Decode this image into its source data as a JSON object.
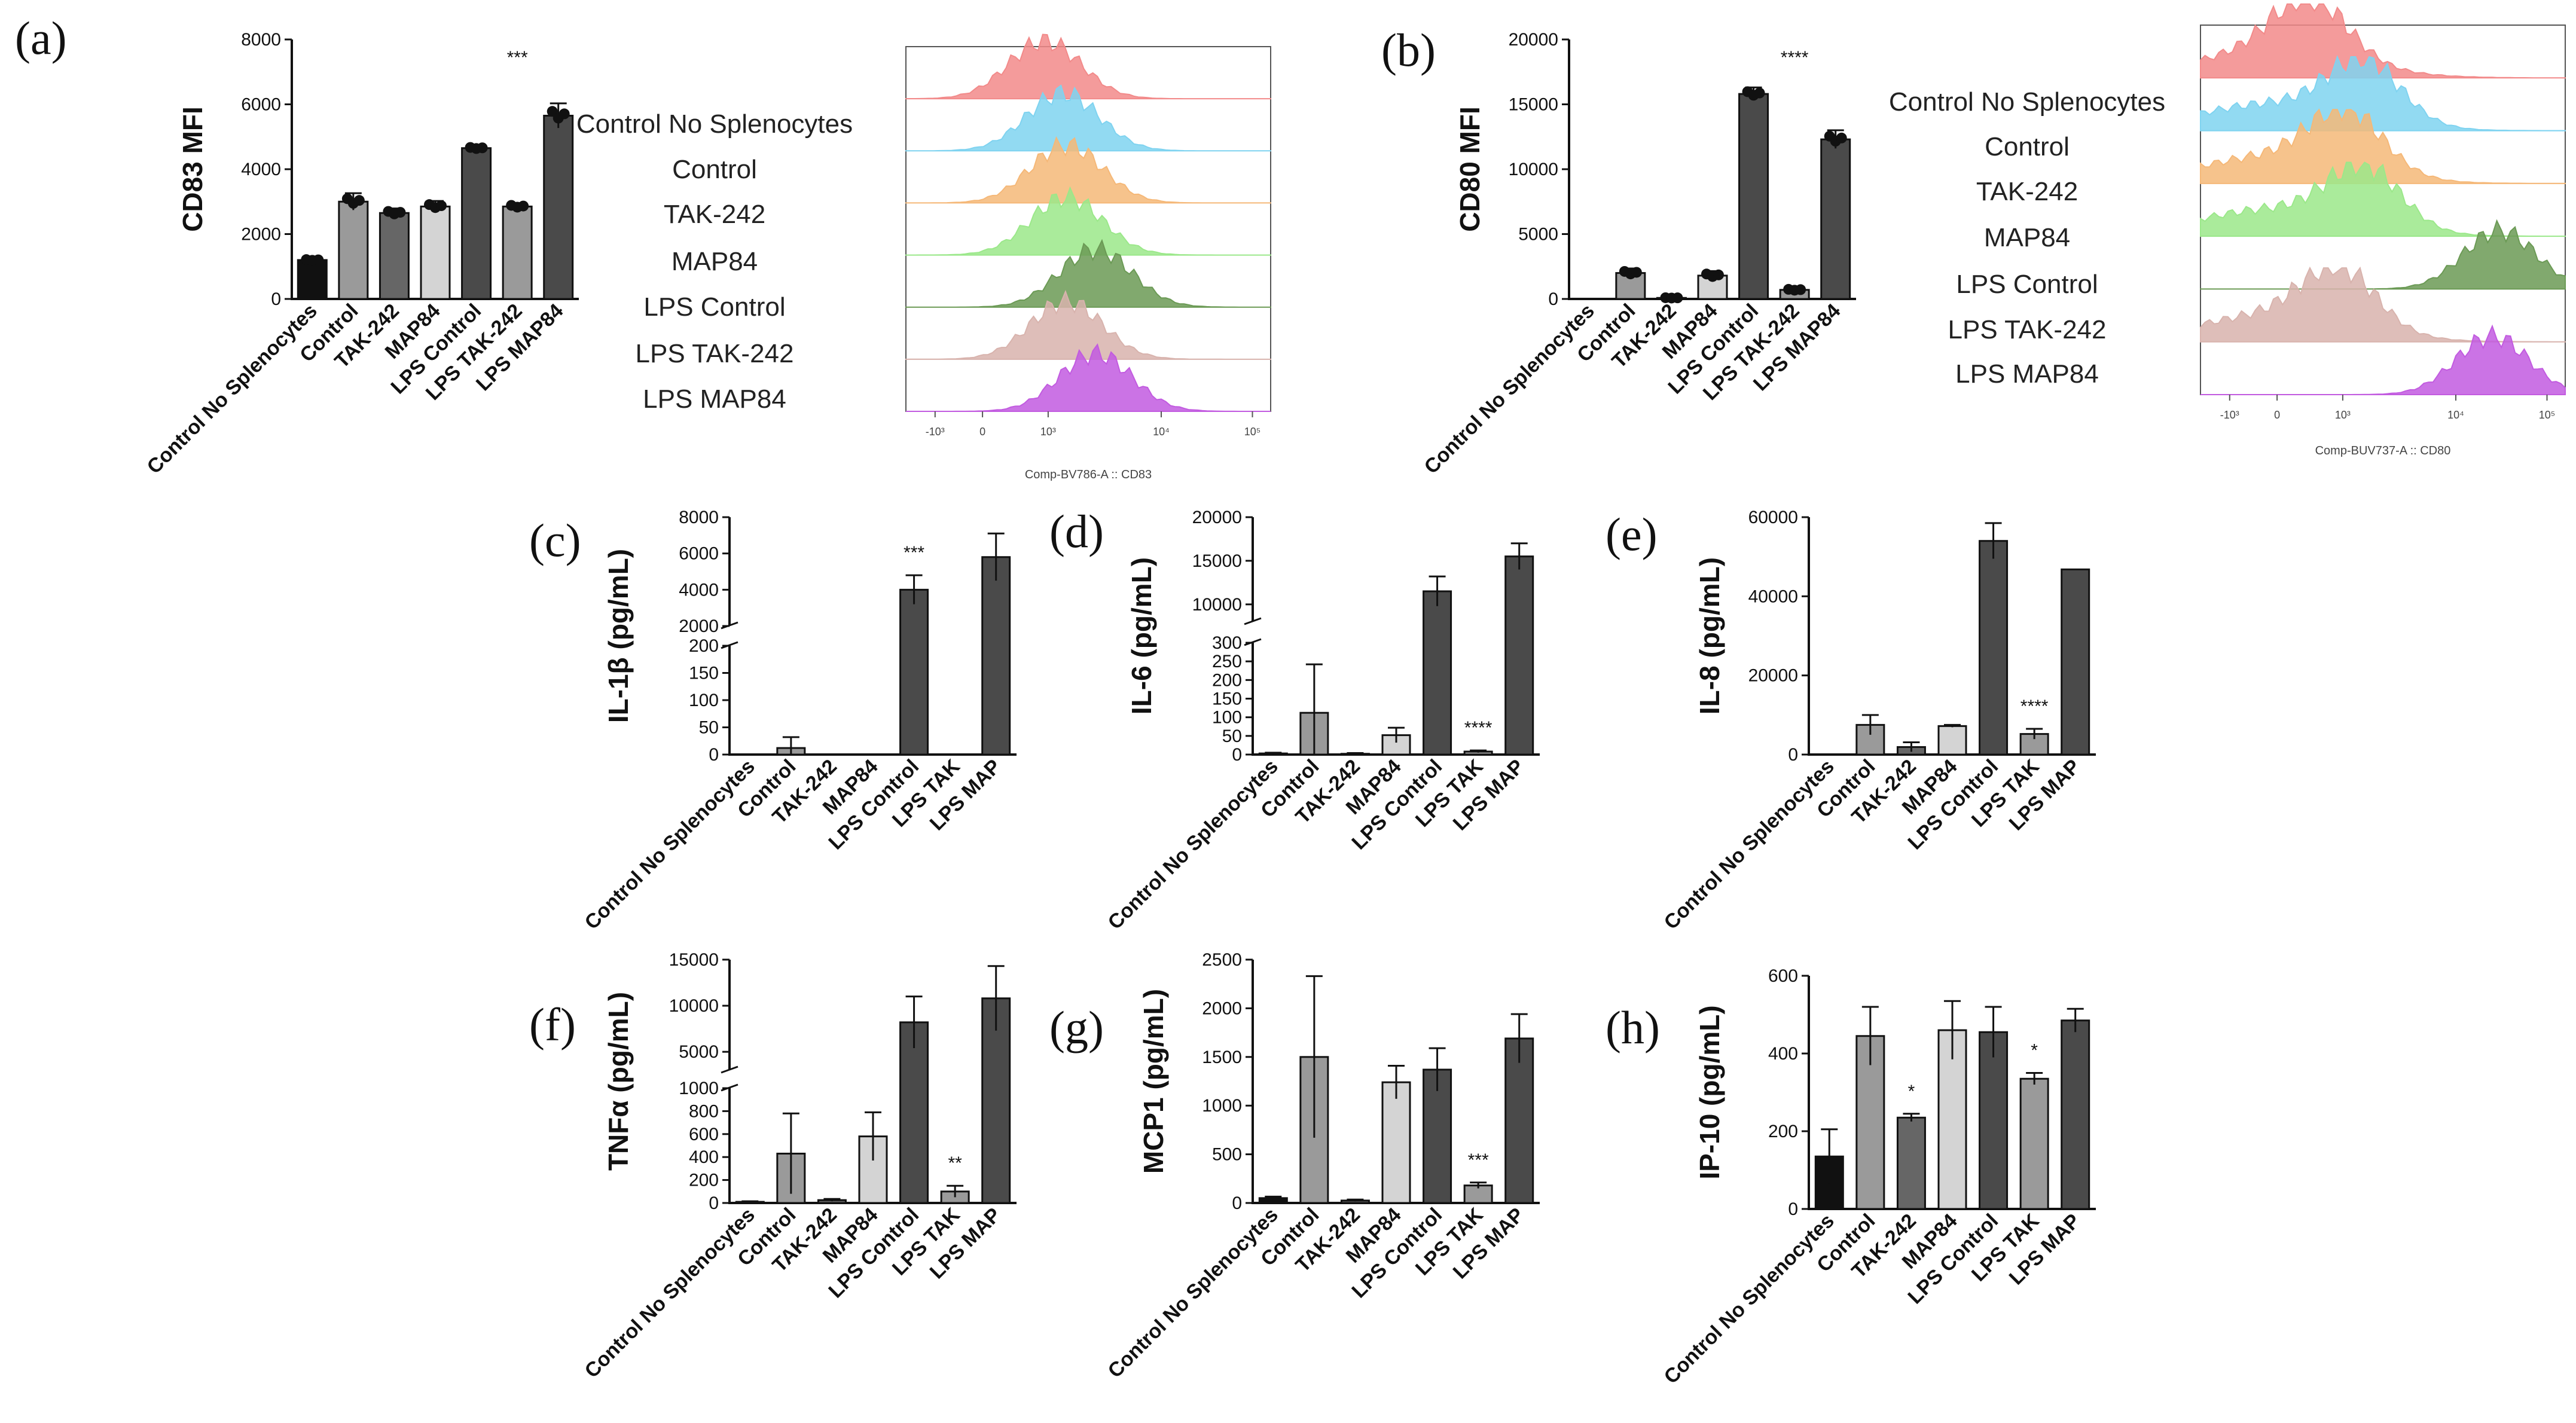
{
  "colors": {
    "black": "#111111",
    "mid_gray": "#9a9a9a",
    "dark_gray": "#666666",
    "light_gray": "#d4d4d4",
    "darker": "#4a4a4a",
    "axis": "#111111"
  },
  "chart_data": [
    {
      "panel": "(a)",
      "type": "bar",
      "ylabel": "CD83 MFI",
      "categories": [
        "Control No Splenocytes",
        "Control",
        "TAK-242",
        "MAP84",
        "LPS Control",
        "LPS TAK-242",
        "LPS MAP84"
      ],
      "values": [
        1200,
        3000,
        2650,
        2850,
        4650,
        2850,
        5650
      ],
      "errors": [
        40,
        260,
        140,
        170,
        60,
        100,
        380
      ],
      "ylim": [
        0,
        8000
      ],
      "yticks": [
        "0",
        "2000",
        "4000",
        "6000",
        "8000"
      ],
      "significance": [
        {
          "label": "***",
          "category": "LPS TAK-242"
        }
      ]
    },
    {
      "panel": "(b)",
      "type": "bar",
      "ylabel": "CD80 MFI",
      "categories": [
        "Control No Splenocytes",
        "Control",
        "TAK-242",
        "MAP84",
        "LPS Control",
        "LPS TAK-242",
        "LPS MAP84"
      ],
      "values": [
        0,
        2000,
        80,
        1800,
        15800,
        700,
        12300
      ],
      "errors": [
        0,
        350,
        40,
        350,
        500,
        120,
        700
      ],
      "ylim": [
        0,
        20000
      ],
      "yticks": [
        "0",
        "5000",
        "10000",
        "15000",
        "20000"
      ],
      "significance": [
        {
          "label": "****",
          "category": "LPS TAK-242"
        }
      ]
    },
    {
      "panel": "(c)",
      "type": "bar",
      "ylabel": "IL-1β (pg/mL)",
      "categories": [
        "Control No Splenocytes",
        "Control",
        "TAK-242",
        "MAP84",
        "LPS Control",
        "LPS TAK",
        "LPS MAP"
      ],
      "values": [
        0,
        12,
        0,
        0,
        4000,
        0,
        5800
      ],
      "errors": [
        0,
        20,
        0,
        0,
        800,
        0,
        1300
      ],
      "ylim": [
        0,
        8000
      ],
      "axis_break": {
        "lower": [
          0,
          200
        ],
        "upper": [
          2000,
          8000
        ]
      },
      "yticks_lower": [
        "0",
        "50",
        "100",
        "150",
        "200"
      ],
      "yticks_upper": [
        "2000",
        "4000",
        "6000",
        "8000"
      ],
      "significance": [
        {
          "label": "***",
          "category": "LPS Control"
        }
      ]
    },
    {
      "panel": "(d)",
      "type": "bar",
      "ylabel": "IL-6 (pg/mL)",
      "categories": [
        "Control No Splenocytes",
        "Control",
        "TAK-242",
        "MAP84",
        "LPS Control",
        "LPS TAK",
        "LPS MAP"
      ],
      "values": [
        3,
        112,
        2,
        52,
        11500,
        8,
        15500
      ],
      "errors": [
        2,
        130,
        2,
        20,
        1700,
        3,
        1500
      ],
      "ylim": [
        0,
        20000
      ],
      "axis_break": {
        "lower": [
          0,
          300
        ],
        "upper": [
          8000,
          20000
        ]
      },
      "yticks_lower": [
        "0",
        "50",
        "100",
        "150",
        "200",
        "250",
        "300"
      ],
      "yticks_upper": [
        "10000",
        "15000",
        "20000"
      ],
      "significance": [
        {
          "label": "****",
          "category": "LPS TAK"
        }
      ]
    },
    {
      "panel": "(e)",
      "type": "bar",
      "ylabel": "IL-8 (pg/mL)",
      "categories": [
        "Control No Splenocytes",
        "Control",
        "TAK-242",
        "MAP84",
        "LPS Control",
        "LPS TAK",
        "LPS MAP"
      ],
      "values": [
        0,
        7500,
        1900,
        7200,
        54000,
        5200,
        46800
      ],
      "errors": [
        0,
        2500,
        1200,
        300,
        4500,
        1300,
        0
      ],
      "ylim": [
        0,
        60000
      ],
      "yticks": [
        "0",
        "20000",
        "40000",
        "60000"
      ],
      "significance": [
        {
          "label": "****",
          "category": "LPS TAK"
        }
      ]
    },
    {
      "panel": "(f)",
      "type": "bar",
      "ylabel": "TNFα (pg/mL)",
      "categories": [
        "Control No Splenocytes",
        "Control",
        "TAK-242",
        "MAP84",
        "LPS Control",
        "LPS TAK",
        "LPS MAP"
      ],
      "values": [
        10,
        430,
        25,
        580,
        8200,
        100,
        10800
      ],
      "errors": [
        5,
        350,
        10,
        210,
        2800,
        50,
        3500
      ],
      "ylim": [
        0,
        15000
      ],
      "axis_break": {
        "lower": [
          0,
          1000
        ],
        "upper": [
          3000,
          15000
        ]
      },
      "yticks_lower": [
        "0",
        "200",
        "400",
        "600",
        "800",
        "1000"
      ],
      "yticks_upper": [
        "5000",
        "10000",
        "15000"
      ],
      "significance": [
        {
          "label": "**",
          "category": "LPS TAK"
        }
      ]
    },
    {
      "panel": "(g)",
      "type": "bar",
      "ylabel": "MCP1 (pg/mL)",
      "categories": [
        "Control No Splenocytes",
        "Control",
        "TAK-242",
        "MAP84",
        "LPS Control",
        "LPS TAK",
        "LPS MAP"
      ],
      "values": [
        50,
        1500,
        25,
        1240,
        1370,
        180,
        1690
      ],
      "errors": [
        15,
        830,
        10,
        170,
        220,
        30,
        250
      ],
      "ylim": [
        0,
        2500
      ],
      "yticks": [
        "0",
        "500",
        "1000",
        "1500",
        "2000",
        "2500"
      ],
      "significance": [
        {
          "label": "***",
          "category": "LPS TAK"
        }
      ]
    },
    {
      "panel": "(h)",
      "type": "bar",
      "ylabel": "IP-10 (pg/mL)",
      "categories": [
        "Control No Splenocytes",
        "Control",
        "TAK-242",
        "MAP84",
        "LPS Control",
        "LPS TAK",
        "LPS MAP"
      ],
      "values": [
        135,
        445,
        235,
        460,
        455,
        335,
        485
      ],
      "errors": [
        70,
        75,
        10,
        75,
        65,
        15,
        30
      ],
      "ylim": [
        0,
        600
      ],
      "yticks": [
        "0",
        "200",
        "400",
        "600"
      ],
      "significance": [
        {
          "label": "*",
          "category": "TAK-242"
        },
        {
          "label": "*",
          "category": "LPS TAK"
        }
      ]
    }
  ],
  "histograms": [
    {
      "panel": "(a)",
      "xlabel": "Comp-BV786-A :: CD83",
      "xticks": [
        "-10³",
        "0",
        "10³",
        "10⁴",
        "10⁵"
      ],
      "tracks": [
        "Control No Splenocytes",
        "Control",
        "TAK-242",
        "MAP84",
        "LPS Control",
        "LPS TAK-242",
        "LPS MAP84"
      ],
      "peaks": [
        0.38,
        0.43,
        0.44,
        0.44,
        0.52,
        0.44,
        0.52
      ]
    },
    {
      "panel": "(b)",
      "xlabel": "Comp-BUV737-A :: CD80",
      "xticks": [
        "-10³",
        "0",
        "10³",
        "10⁴",
        "10⁵"
      ],
      "tracks": [
        "Control No Splenocytes",
        "Control",
        "TAK-242",
        "MAP84",
        "LPS Control",
        "LPS TAK-242",
        "LPS MAP84"
      ],
      "peaks": [
        0.3,
        0.45,
        0.4,
        0.45,
        0.82,
        0.38,
        0.8
      ]
    }
  ],
  "track_colors": [
    "#f28a8a",
    "#7fd3f0",
    "#f5b878",
    "#9be88a",
    "#6b9a55",
    "#d8b3ad",
    "#c25be0"
  ]
}
